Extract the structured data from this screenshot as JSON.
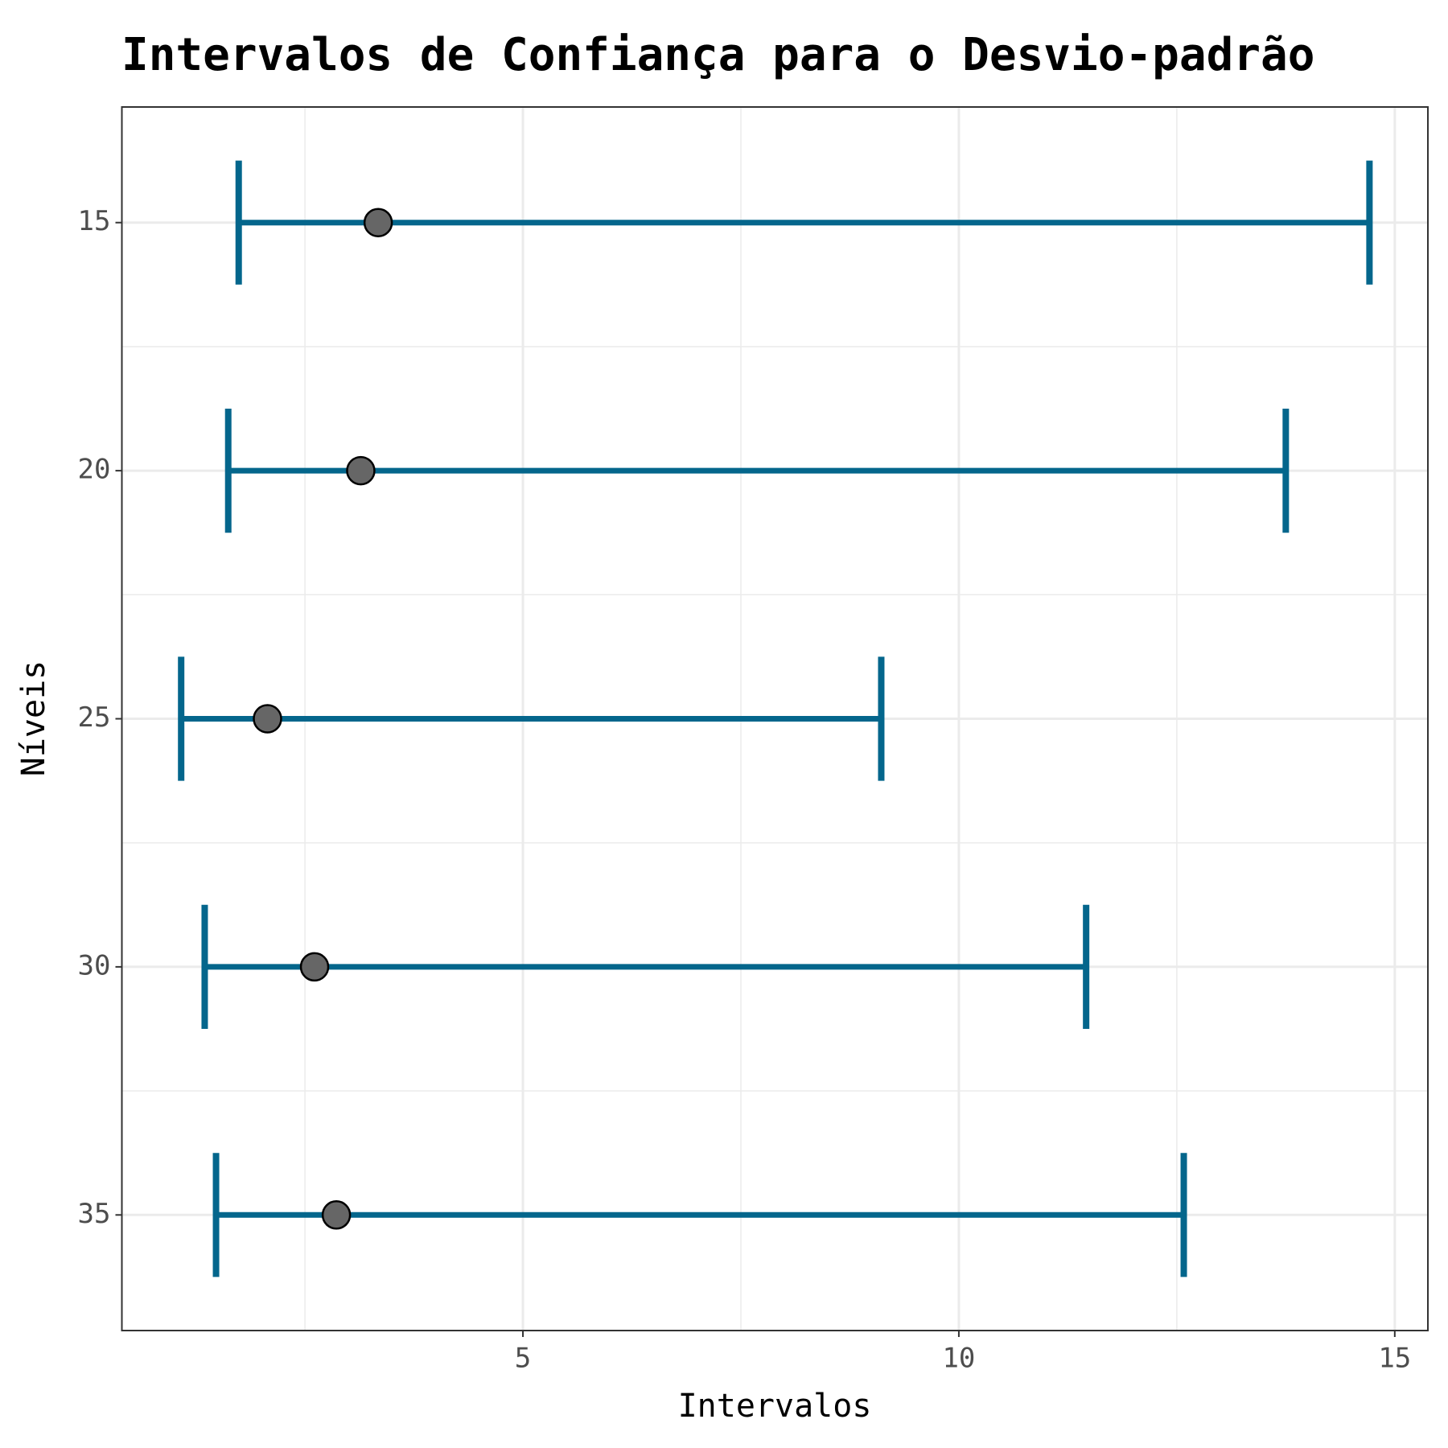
{
  "chart_data": {
    "type": "interval",
    "title": "Intervalos de Confiança para o Desvio-padrão",
    "x_label": "Intervalos",
    "y_label": "Níveis",
    "categories": [
      "15",
      "20",
      "25",
      "30",
      "35"
    ],
    "series": [
      {
        "name": "lower",
        "color": "#04668c",
        "values": [
          1.74,
          1.62,
          1.08,
          1.35,
          1.48
        ]
      },
      {
        "name": "estimate",
        "color": "#666666",
        "values": [
          3.34,
          3.14,
          2.07,
          2.61,
          2.86
        ]
      },
      {
        "name": "upper",
        "color": "#04668c",
        "values": [
          14.71,
          13.75,
          9.11,
          11.46,
          12.58
        ]
      }
    ],
    "xlim": [
      0.4,
      15.38
    ],
    "xticks": [
      5,
      10,
      15
    ],
    "grid": true
  }
}
